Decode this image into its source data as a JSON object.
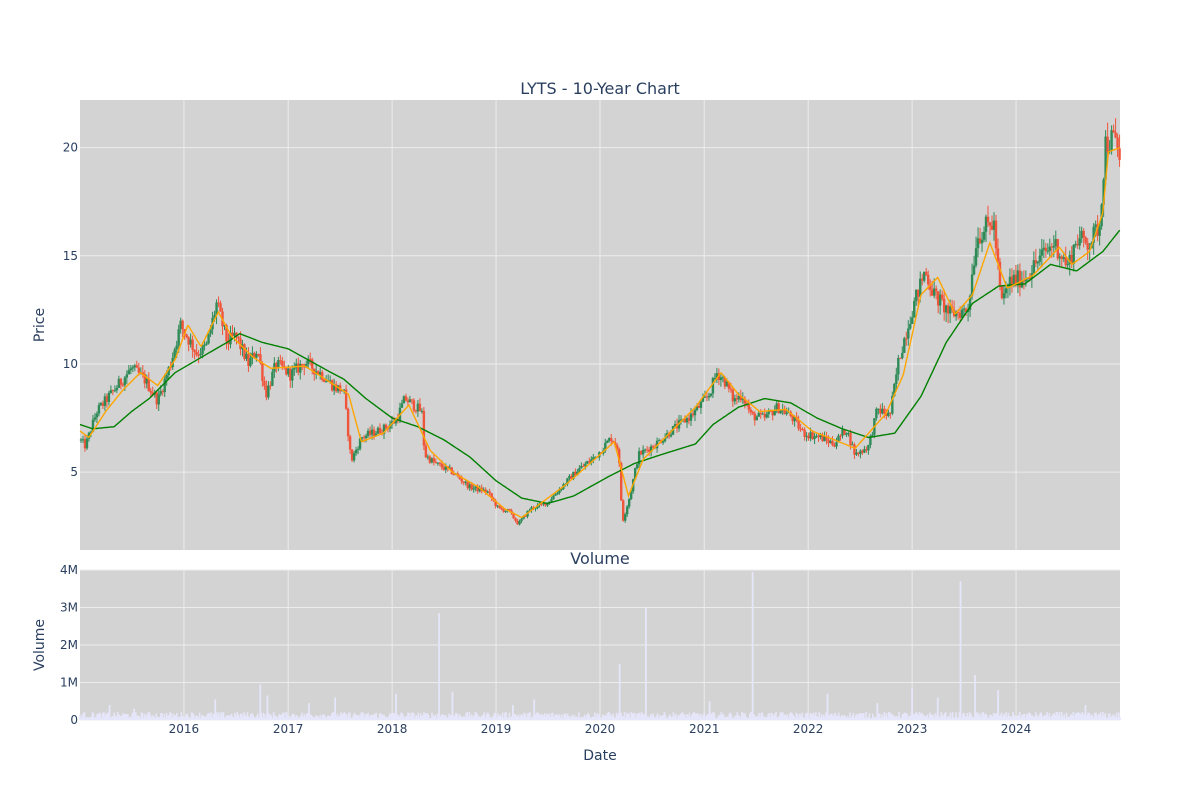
{
  "chart_data": [
    {
      "type": "candlestick",
      "title": "LYTS - 10-Year Chart",
      "xlabel": "",
      "ylabel": "Price",
      "x_range": [
        "2015-01-01",
        "2024-12-31"
      ],
      "ylim": [
        1.4,
        22.2
      ],
      "y_ticks": [
        5,
        10,
        15,
        20
      ],
      "grid": true,
      "legend": "none",
      "colors": {
        "background": "#d3d3d3",
        "grid": "#ececec",
        "up": "#2e8b57",
        "down": "#ef553b",
        "ma_short": "#ffa500",
        "ma_long": "#008000",
        "text": "#2a3f5f"
      },
      "price_anchors": [
        [
          "2015-01-01",
          6.5
        ],
        [
          "2015-01-20",
          6.2
        ],
        [
          "2015-03-01",
          7.8
        ],
        [
          "2015-05-01",
          8.8
        ],
        [
          "2015-07-01",
          9.8
        ],
        [
          "2015-08-15",
          9.3
        ],
        [
          "2015-10-01",
          8.3
        ],
        [
          "2015-11-15",
          10.0
        ],
        [
          "2015-12-20",
          11.8
        ],
        [
          "2016-02-15",
          10.5
        ],
        [
          "2016-03-20",
          10.8
        ],
        [
          "2016-04-25",
          12.8
        ],
        [
          "2016-06-01",
          11.0
        ],
        [
          "2016-07-01",
          11.3
        ],
        [
          "2016-08-15",
          10.0
        ],
        [
          "2016-09-15",
          10.7
        ],
        [
          "2016-10-15",
          8.6
        ],
        [
          "2016-11-20",
          10.0
        ],
        [
          "2017-01-10",
          9.5
        ],
        [
          "2017-03-01",
          10.1
        ],
        [
          "2017-05-01",
          9.5
        ],
        [
          "2017-06-15",
          8.9
        ],
        [
          "2017-07-15",
          8.8
        ],
        [
          "2017-08-10",
          5.5
        ],
        [
          "2017-09-15",
          6.6
        ],
        [
          "2017-12-01",
          7.0
        ],
        [
          "2018-01-15",
          7.4
        ],
        [
          "2018-02-15",
          8.4
        ],
        [
          "2018-04-15",
          7.8
        ],
        [
          "2018-04-25",
          5.8
        ],
        [
          "2018-06-01",
          5.4
        ],
        [
          "2018-08-01",
          5.0
        ],
        [
          "2018-10-01",
          4.3
        ],
        [
          "2018-12-01",
          4.1
        ],
        [
          "2019-01-10",
          3.3
        ],
        [
          "2019-02-15",
          3.2
        ],
        [
          "2019-03-20",
          2.6
        ],
        [
          "2019-05-01",
          3.3
        ],
        [
          "2019-07-01",
          3.6
        ],
        [
          "2019-09-01",
          4.5
        ],
        [
          "2019-10-15",
          5.1
        ],
        [
          "2019-12-15",
          5.7
        ],
        [
          "2020-02-10",
          6.6
        ],
        [
          "2020-03-05",
          6.1
        ],
        [
          "2020-03-20",
          2.7
        ],
        [
          "2020-04-15",
          3.9
        ],
        [
          "2020-05-15",
          5.8
        ],
        [
          "2020-07-15",
          6.3
        ],
        [
          "2020-09-15",
          7.0
        ],
        [
          "2020-11-15",
          7.6
        ],
        [
          "2021-01-15",
          8.5
        ],
        [
          "2021-02-15",
          9.6
        ],
        [
          "2021-03-15",
          9.2
        ],
        [
          "2021-04-15",
          8.3
        ],
        [
          "2021-05-15",
          8.6
        ],
        [
          "2021-06-15",
          7.6
        ],
        [
          "2021-08-01",
          7.5
        ],
        [
          "2021-09-15",
          8.0
        ],
        [
          "2021-11-01",
          7.6
        ],
        [
          "2021-12-15",
          6.8
        ],
        [
          "2022-02-15",
          6.6
        ],
        [
          "2022-04-01",
          6.3
        ],
        [
          "2022-05-15",
          7.0
        ],
        [
          "2022-06-15",
          5.8
        ],
        [
          "2022-08-01",
          6.2
        ],
        [
          "2022-09-01",
          7.9
        ],
        [
          "2022-10-15",
          7.6
        ],
        [
          "2022-11-15",
          10.2
        ],
        [
          "2023-01-01",
          12.5
        ],
        [
          "2023-02-15",
          14.3
        ],
        [
          "2023-03-20",
          13.2
        ],
        [
          "2023-05-15",
          12.3
        ],
        [
          "2023-07-15",
          12.5
        ],
        [
          "2023-08-15",
          15.8
        ],
        [
          "2023-09-15",
          16.3
        ],
        [
          "2023-10-15",
          16.5
        ],
        [
          "2023-11-10",
          12.8
        ],
        [
          "2023-12-10",
          13.8
        ],
        [
          "2024-02-01",
          14.0
        ],
        [
          "2024-04-01",
          15.0
        ],
        [
          "2024-05-15",
          15.6
        ],
        [
          "2024-07-01",
          14.5
        ],
        [
          "2024-08-01",
          15.8
        ],
        [
          "2024-09-15",
          15.6
        ],
        [
          "2024-10-20",
          16.4
        ],
        [
          "2024-11-10",
          20.2
        ],
        [
          "2024-12-10",
          20.4
        ],
        [
          "2024-12-31",
          19.5
        ]
      ],
      "ma_short_anchors": [
        [
          "2015-01-01",
          6.9
        ],
        [
          "2015-02-01",
          6.6
        ],
        [
          "2015-04-01",
          7.8
        ],
        [
          "2015-06-01",
          8.8
        ],
        [
          "2015-08-01",
          9.6
        ],
        [
          "2015-10-01",
          9.0
        ],
        [
          "2015-12-01",
          10.2
        ],
        [
          "2016-01-15",
          11.8
        ],
        [
          "2016-03-01",
          10.8
        ],
        [
          "2016-05-01",
          12.4
        ],
        [
          "2016-06-15",
          11.3
        ],
        [
          "2016-09-01",
          10.3
        ],
        [
          "2016-11-01",
          9.8
        ],
        [
          "2017-03-01",
          9.9
        ],
        [
          "2017-06-15",
          9.0
        ],
        [
          "2017-08-01",
          8.6
        ],
        [
          "2017-09-15",
          6.4
        ],
        [
          "2017-12-01",
          6.8
        ],
        [
          "2018-03-01",
          8.1
        ],
        [
          "2018-05-15",
          6.0
        ],
        [
          "2018-08-01",
          5.0
        ],
        [
          "2018-11-01",
          4.3
        ],
        [
          "2019-02-01",
          3.3
        ],
        [
          "2019-04-01",
          2.9
        ],
        [
          "2019-06-01",
          3.5
        ],
        [
          "2019-09-01",
          4.4
        ],
        [
          "2019-11-01",
          5.1
        ],
        [
          "2020-02-20",
          6.4
        ],
        [
          "2020-04-10",
          3.9
        ],
        [
          "2020-06-01",
          5.6
        ],
        [
          "2020-09-01",
          6.8
        ],
        [
          "2020-12-01",
          8.0
        ],
        [
          "2021-03-01",
          9.6
        ],
        [
          "2021-05-01",
          8.6
        ],
        [
          "2021-07-15",
          7.8
        ],
        [
          "2021-10-15",
          7.9
        ],
        [
          "2022-01-15",
          6.9
        ],
        [
          "2022-04-01",
          6.5
        ],
        [
          "2022-06-15",
          6.1
        ],
        [
          "2022-10-01",
          7.7
        ],
        [
          "2022-12-01",
          9.5
        ],
        [
          "2023-02-01",
          13.2
        ],
        [
          "2023-04-01",
          14.0
        ],
        [
          "2023-06-01",
          12.3
        ],
        [
          "2023-08-01",
          13.2
        ],
        [
          "2023-10-01",
          15.6
        ],
        [
          "2023-12-01",
          13.5
        ],
        [
          "2024-03-01",
          14.1
        ],
        [
          "2024-06-01",
          15.4
        ],
        [
          "2024-07-15",
          14.6
        ],
        [
          "2024-09-15",
          15.2
        ],
        [
          "2024-11-01",
          17.0
        ],
        [
          "2024-11-20",
          19.8
        ],
        [
          "2024-12-31",
          20.0
        ]
      ],
      "ma_long_anchors": [
        [
          "2015-01-01",
          7.2
        ],
        [
          "2015-02-15",
          7.0
        ],
        [
          "2015-05-01",
          7.1
        ],
        [
          "2015-07-01",
          7.8
        ],
        [
          "2015-09-01",
          8.4
        ],
        [
          "2015-12-01",
          9.6
        ],
        [
          "2016-03-01",
          10.3
        ],
        [
          "2016-06-01",
          11.0
        ],
        [
          "2016-07-15",
          11.4
        ],
        [
          "2016-10-01",
          11.0
        ],
        [
          "2017-01-01",
          10.7
        ],
        [
          "2017-06-01",
          9.6
        ],
        [
          "2017-07-15",
          9.3
        ],
        [
          "2017-10-01",
          8.4
        ],
        [
          "2018-01-01",
          7.5
        ],
        [
          "2018-04-01",
          7.1
        ],
        [
          "2018-07-01",
          6.5
        ],
        [
          "2018-10-01",
          5.7
        ],
        [
          "2019-01-01",
          4.6
        ],
        [
          "2019-04-01",
          3.8
        ],
        [
          "2019-07-01",
          3.55
        ],
        [
          "2019-10-01",
          3.9
        ],
        [
          "2020-02-01",
          4.8
        ],
        [
          "2020-05-01",
          5.4
        ],
        [
          "2020-08-01",
          5.8
        ],
        [
          "2020-12-01",
          6.3
        ],
        [
          "2021-02-01",
          7.2
        ],
        [
          "2021-05-01",
          8.0
        ],
        [
          "2021-08-01",
          8.4
        ],
        [
          "2021-11-01",
          8.2
        ],
        [
          "2022-02-01",
          7.5
        ],
        [
          "2022-05-01",
          7.0
        ],
        [
          "2022-08-01",
          6.6
        ],
        [
          "2022-11-01",
          6.8
        ],
        [
          "2023-02-01",
          8.5
        ],
        [
          "2023-05-01",
          11.0
        ],
        [
          "2023-08-01",
          12.8
        ],
        [
          "2023-11-01",
          13.6
        ],
        [
          "2024-02-01",
          13.7
        ],
        [
          "2024-05-01",
          14.6
        ],
        [
          "2024-08-01",
          14.3
        ],
        [
          "2024-11-01",
          15.2
        ],
        [
          "2024-12-31",
          16.2
        ]
      ]
    },
    {
      "type": "bar",
      "title": "Volume",
      "xlabel": "Date",
      "ylabel": "Volume",
      "x_range": [
        "2015-01-01",
        "2024-12-31"
      ],
      "x_ticks": [
        "2016",
        "2017",
        "2018",
        "2019",
        "2020",
        "2021",
        "2022",
        "2023",
        "2024"
      ],
      "ylim": [
        0,
        4000000
      ],
      "y_ticks": [
        0,
        1000000,
        2000000,
        3000000,
        4000000
      ],
      "y_tick_labels": [
        "0",
        "1M",
        "2M",
        "3M",
        "4M"
      ],
      "grid": true,
      "legend": "none",
      "colors": {
        "bar": "#e6e6fa",
        "background": "#d3d3d3",
        "grid": "#ececec"
      },
      "baseline_volume": 120000,
      "spikes": [
        [
          "2015-04-15",
          400000
        ],
        [
          "2015-07-10",
          300000
        ],
        [
          "2016-04-20",
          550000
        ],
        [
          "2016-09-25",
          950000
        ],
        [
          "2016-10-20",
          650000
        ],
        [
          "2017-03-15",
          450000
        ],
        [
          "2017-06-15",
          600000
        ],
        [
          "2018-01-15",
          700000
        ],
        [
          "2018-06-15",
          2850000
        ],
        [
          "2018-08-01",
          750000
        ],
        [
          "2019-03-01",
          400000
        ],
        [
          "2019-05-15",
          550000
        ],
        [
          "2020-03-10",
          1500000
        ],
        [
          "2020-06-10",
          3000000
        ],
        [
          "2021-01-20",
          500000
        ],
        [
          "2021-06-20",
          3950000
        ],
        [
          "2022-03-10",
          700000
        ],
        [
          "2022-09-01",
          450000
        ],
        [
          "2023-01-01",
          850000
        ],
        [
          "2023-04-01",
          600000
        ],
        [
          "2023-06-20",
          3700000
        ],
        [
          "2023-08-10",
          1200000
        ],
        [
          "2023-10-30",
          800000
        ],
        [
          "2024-09-01",
          400000
        ]
      ]
    }
  ]
}
